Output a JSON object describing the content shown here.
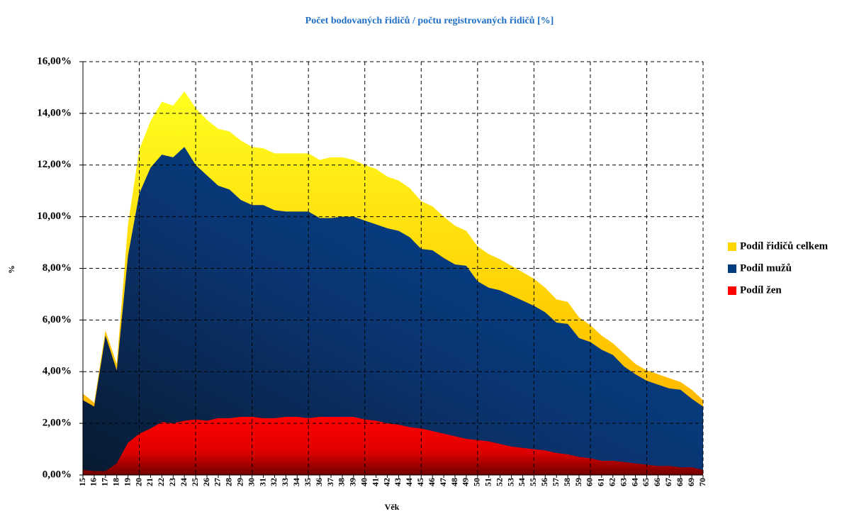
{
  "chart_data": {
    "type": "area",
    "title": "Počet bodovaných řidičů / počtu registrovaných řidičů [%]",
    "x_label": "Věk",
    "y_label": "%",
    "categories": [
      "15",
      "16",
      "17",
      "18",
      "19",
      "20",
      "21",
      "22",
      "23",
      "24",
      "25",
      "26",
      "27",
      "28",
      "29",
      "30",
      "31",
      "32",
      "33",
      "34",
      "35",
      "36",
      "37",
      "38",
      "39",
      "40",
      "41",
      "42",
      "43",
      "44",
      "45",
      "46",
      "47",
      "48",
      "49",
      "50",
      "51",
      "52",
      "53",
      "54",
      "55",
      "56",
      "57",
      "58",
      "59",
      "60",
      "61",
      "62",
      "63",
      "64",
      "65",
      "66",
      "67",
      "68",
      "69",
      "70"
    ],
    "series": [
      {
        "name": "Podíl řidičů celkem",
        "color": "#ffd700",
        "values": [
          3.15,
          2.8,
          5.6,
          4.3,
          9.7,
          12.6,
          13.7,
          14.45,
          14.3,
          14.85,
          14.2,
          13.75,
          13.4,
          13.3,
          12.95,
          12.7,
          12.65,
          12.45,
          12.45,
          12.45,
          12.45,
          12.2,
          12.3,
          12.3,
          12.2,
          12.0,
          11.85,
          11.55,
          11.4,
          11.1,
          10.6,
          10.4,
          10.0,
          9.65,
          9.45,
          8.85,
          8.55,
          8.35,
          8.1,
          7.85,
          7.6,
          7.25,
          6.8,
          6.7,
          6.1,
          5.8,
          5.4,
          5.1,
          4.7,
          4.3,
          4.05,
          3.9,
          3.75,
          3.6,
          3.3,
          2.9
        ]
      },
      {
        "name": "Podíl mužů",
        "color": "#003c7e",
        "values": [
          2.9,
          2.65,
          5.4,
          4.05,
          8.5,
          10.9,
          11.9,
          12.4,
          12.3,
          12.7,
          12.0,
          11.6,
          11.2,
          11.05,
          10.65,
          10.45,
          10.45,
          10.25,
          10.2,
          10.2,
          10.2,
          9.95,
          9.95,
          10.0,
          10.0,
          9.85,
          9.7,
          9.55,
          9.45,
          9.2,
          8.75,
          8.7,
          8.4,
          8.15,
          8.1,
          7.5,
          7.25,
          7.15,
          6.95,
          6.75,
          6.55,
          6.3,
          5.9,
          5.85,
          5.3,
          5.15,
          4.85,
          4.65,
          4.2,
          3.9,
          3.65,
          3.5,
          3.35,
          3.3,
          2.95,
          2.65
        ]
      },
      {
        "name": "Podíl žen",
        "color": "#ff0000",
        "values": [
          0.2,
          0.15,
          0.15,
          0.45,
          1.25,
          1.6,
          1.8,
          2.05,
          2.0,
          2.1,
          2.15,
          2.1,
          2.2,
          2.2,
          2.25,
          2.25,
          2.2,
          2.2,
          2.25,
          2.25,
          2.2,
          2.25,
          2.25,
          2.25,
          2.25,
          2.15,
          2.1,
          2.0,
          1.95,
          1.85,
          1.8,
          1.7,
          1.6,
          1.5,
          1.4,
          1.35,
          1.3,
          1.2,
          1.1,
          1.05,
          1.0,
          0.95,
          0.85,
          0.8,
          0.7,
          0.65,
          0.55,
          0.55,
          0.5,
          0.45,
          0.4,
          0.35,
          0.35,
          0.3,
          0.3,
          0.2
        ]
      }
    ],
    "ylim": [
      0,
      16
    ],
    "yticks": [
      {
        "value": 0,
        "label": "0,00%"
      },
      {
        "value": 2,
        "label": "2,00%"
      },
      {
        "value": 4,
        "label": "4,00%"
      },
      {
        "value": 6,
        "label": "6,00%"
      },
      {
        "value": 8,
        "label": "8,00%"
      },
      {
        "value": 10,
        "label": "10,00%"
      },
      {
        "value": 12,
        "label": "12,00%"
      },
      {
        "value": 14,
        "label": "14,00%"
      },
      {
        "value": 16,
        "label": "16,00%"
      }
    ],
    "grid": true,
    "legend": "right"
  }
}
